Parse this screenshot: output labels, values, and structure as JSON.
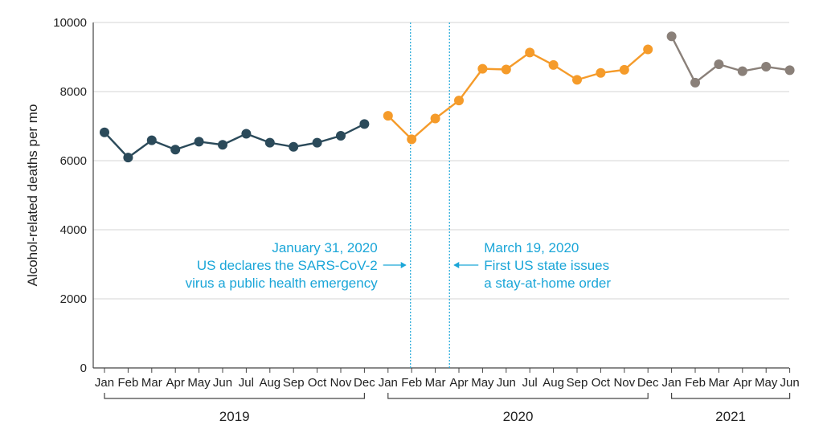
{
  "chart_data": {
    "type": "line",
    "ylabel": "Alcohol-related deaths per mo",
    "ylim": [
      0,
      10000
    ],
    "yticks": [
      0,
      2000,
      4000,
      6000,
      8000,
      10000
    ],
    "grid": "horizontal",
    "month_labels": [
      "Jan",
      "Feb",
      "Mar",
      "Apr",
      "May",
      "Jun",
      "Jul",
      "Aug",
      "Sep",
      "Oct",
      "Nov",
      "Dec",
      "Jan",
      "Feb",
      "Mar",
      "Apr",
      "May",
      "Jun",
      "Jul",
      "Aug",
      "Sep",
      "Oct",
      "Nov",
      "Dec",
      "Jan",
      "Feb",
      "Mar",
      "Apr",
      "May",
      "Jun"
    ],
    "series": [
      {
        "year": "2019",
        "color": "#2b4a5a",
        "start": 0,
        "values": [
          6820,
          6090,
          6590,
          6320,
          6550,
          6460,
          6780,
          6520,
          6400,
          6520,
          6720,
          7060
        ]
      },
      {
        "year": "2020",
        "color": "#f59b2a",
        "start": 12,
        "values": [
          7300,
          6620,
          7220,
          7740,
          8660,
          8640,
          9130,
          8770,
          8340,
          8540,
          8630,
          9220
        ]
      },
      {
        "year": "2021",
        "color": "#8a8079",
        "start": 24,
        "values": [
          9600,
          8260,
          8790,
          8590,
          8720,
          8620
        ]
      }
    ],
    "groups": [
      {
        "label": "2019",
        "from": 0,
        "to": 11
      },
      {
        "label": "2020",
        "from": 12,
        "to": 23
      },
      {
        "label": "2021",
        "from": 24,
        "to": 29
      }
    ],
    "annotations": [
      {
        "date_index": 12.95,
        "side": "left",
        "lines": [
          "January 31, 2020",
          "US declares the SARS-CoV-2",
          "virus a public health emergency"
        ]
      },
      {
        "date_index": 14.6,
        "side": "right",
        "lines": [
          "March 19, 2020",
          "First US state issues",
          "a stay-at-home order"
        ]
      }
    ],
    "colors": {
      "grid": "#d5d5d5",
      "axis": "#444444",
      "annotation": "#1ba6d8"
    }
  }
}
